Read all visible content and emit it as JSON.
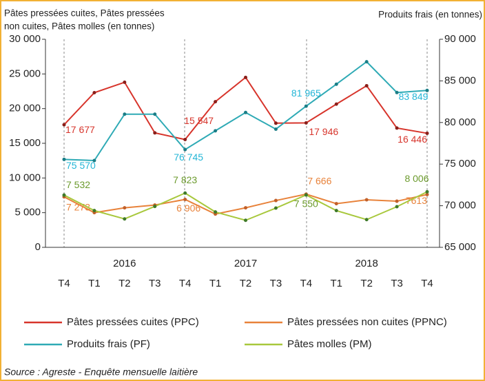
{
  "chart_data": {
    "type": "line",
    "title_lines": [
      "Pâtes pressées cuites, Pâtes pressées",
      "non cuites,  Pâtes molles (en tonnes)"
    ],
    "y2_label": "Produits frais (en tonnes)",
    "categories": [
      "T4",
      "T1",
      "T2",
      "T3",
      "T4",
      "T1",
      "T2",
      "T3",
      "T4",
      "T1",
      "T2",
      "T3",
      "T4"
    ],
    "year_labels": [
      "2016",
      "2017",
      "2018"
    ],
    "ylim": [
      0,
      30000
    ],
    "yticks": [
      0,
      {
        "value": 5000,
        "label": "5 000"
      },
      {
        "value": 10000,
        "label": "10 000"
      },
      {
        "value": 15000,
        "label": "15 000"
      },
      {
        "value": 20000,
        "label": "20 000"
      },
      {
        "value": 25000,
        "label": "25 000"
      },
      {
        "value": 30000,
        "label": "30 000"
      }
    ],
    "y2lim": [
      65000,
      90000
    ],
    "y2ticks": [
      {
        "value": 65000,
        "label": "65 000"
      },
      {
        "value": 70000,
        "label": "70 000"
      },
      {
        "value": 75000,
        "label": "75 000"
      },
      {
        "value": 80000,
        "label": "80 000"
      },
      {
        "value": 85000,
        "label": "85 000"
      },
      {
        "value": 90000,
        "label": "90 000"
      }
    ],
    "series": [
      {
        "name": "Pâtes pressées cuites (PPC)",
        "color": "#d7342b",
        "label_color": "#d7342b",
        "values": [
          17677,
          22300,
          23800,
          16500,
          15547,
          21000,
          24500,
          17900,
          17946,
          20650,
          23300,
          17200,
          16446
        ],
        "value_labels": [
          "17 677",
          null,
          null,
          null,
          "15 547",
          null,
          null,
          null,
          "17 946",
          null,
          null,
          null,
          "16 446"
        ]
      },
      {
        "name": "Pâtes pressées non cuites (PPNC)",
        "color": "#e8823a",
        "label_color": "#e8823a",
        "values": [
          7273,
          5000,
          5700,
          6100,
          6906,
          4800,
          5700,
          6750,
          7666,
          6300,
          6850,
          6650,
          7613
        ],
        "value_labels": [
          "7 273",
          null,
          null,
          null,
          "6 906",
          null,
          null,
          null,
          "7 666",
          null,
          null,
          null,
          "7613"
        ]
      },
      {
        "name": "Produits frais (PF)",
        "color": "#2eaab5",
        "label_color": "#22b5d6",
        "axis": "y2",
        "values": [
          75570,
          75430,
          81000,
          81000,
          76745,
          79000,
          81200,
          79200,
          81965,
          84600,
          87300,
          83600,
          83849
        ],
        "value_labels": [
          "75 570",
          null,
          null,
          null,
          "76 745",
          null,
          null,
          null,
          "81 965",
          null,
          null,
          null,
          "83 849"
        ]
      },
      {
        "name": "Pâtes molles (PM)",
        "color": "#a8c83c",
        "label_color": "#6b9a2c",
        "values": [
          7532,
          5300,
          4100,
          5900,
          7823,
          5100,
          3900,
          5660,
          7550,
          5300,
          4000,
          5860,
          8006
        ],
        "value_labels": [
          "7 532",
          null,
          null,
          null,
          "7 823",
          null,
          null,
          null,
          "7 550",
          null,
          null,
          null,
          "8 006"
        ]
      }
    ],
    "source": "Source : Agreste - Enquête mensuelle laitière"
  }
}
